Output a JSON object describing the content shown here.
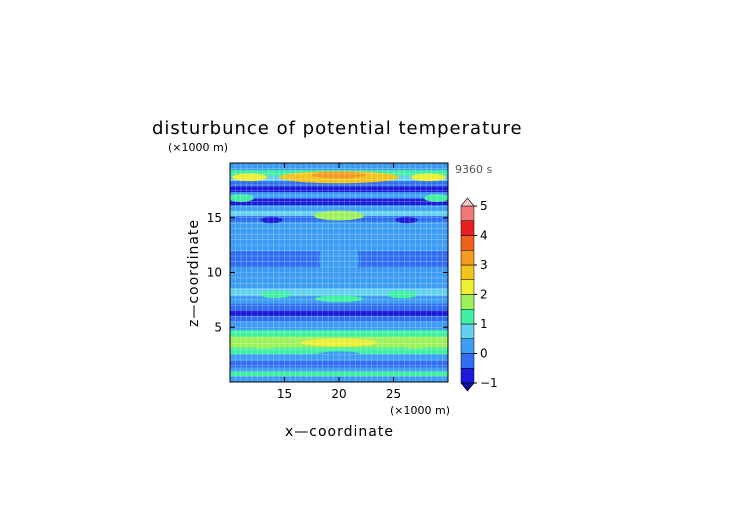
{
  "chart_data": {
    "type": "heatmap",
    "title": "disturbunce of potential temperature",
    "xlabel": "x—coordinate",
    "ylabel": "z—coordinate",
    "x_unit_label": "(×1000 m)",
    "y_unit_label": "(×1000 m)",
    "time_label": "9360 s",
    "xlim": [
      10,
      30
    ],
    "ylim": [
      0,
      20
    ],
    "x_ticks": [
      15,
      20,
      25
    ],
    "x_tick_labels": [
      "15",
      "20",
      "25"
    ],
    "y_ticks": [
      5,
      10,
      15
    ],
    "y_tick_labels": [
      "5",
      "10",
      "15"
    ],
    "grid": true,
    "colorbar": {
      "levels": [
        -1,
        -0.5,
        0,
        0.5,
        1,
        1.5,
        2,
        2.5,
        3,
        3.5,
        4,
        4.5,
        5
      ],
      "tick_values": [
        -1,
        0,
        1,
        2,
        3,
        4,
        5
      ],
      "tick_labels": [
        "−1",
        "0",
        "1",
        "2",
        "3",
        "4",
        "5"
      ],
      "colors": [
        "#1a1ad8",
        "#2f6ef0",
        "#3d9cf4",
        "#63d0f0",
        "#3ff0a0",
        "#9cf05a",
        "#ecf030",
        "#f4c41e",
        "#f49a1c",
        "#f0601c",
        "#e62020",
        "#f07878"
      ],
      "under_color": "#1010a0",
      "over_color": "#f2c8c8"
    },
    "bands": [
      {
        "z": 0.0,
        "value": 0.2
      },
      {
        "z": 0.6,
        "value": 1.0
      },
      {
        "z": 1.0,
        "value": 0.0
      },
      {
        "z": 1.4,
        "value": -0.4
      },
      {
        "z": 2.0,
        "value": 0.4
      },
      {
        "z": 2.6,
        "value": 1.0
      },
      {
        "z": 3.2,
        "value": 1.6
      },
      {
        "z": 3.6,
        "value": 1.9
      },
      {
        "z": 4.2,
        "value": 1.0
      },
      {
        "z": 4.8,
        "value": 0.3
      },
      {
        "z": 5.6,
        "value": -0.3
      },
      {
        "z": 6.1,
        "value": -0.9
      },
      {
        "z": 6.6,
        "value": -0.3
      },
      {
        "z": 7.2,
        "value": 0.4
      },
      {
        "z": 7.9,
        "value": 0.7
      },
      {
        "z": 8.6,
        "value": 0.4
      },
      {
        "z": 9.4,
        "value": 0.0
      },
      {
        "z": 10.5,
        "value": -0.1
      },
      {
        "z": 12.0,
        "value": 0.0
      },
      {
        "z": 13.0,
        "value": 0.2
      },
      {
        "z": 14.0,
        "value": 0.3
      },
      {
        "z": 14.7,
        "value": -0.2
      },
      {
        "z": 15.2,
        "value": 0.8
      },
      {
        "z": 15.7,
        "value": 0.3
      },
      {
        "z": 16.2,
        "value": -0.6
      },
      {
        "z": 16.8,
        "value": 0.4
      },
      {
        "z": 17.4,
        "value": -0.8
      },
      {
        "z": 17.9,
        "value": -0.3
      },
      {
        "z": 18.4,
        "value": 0.6
      },
      {
        "z": 18.9,
        "value": 1.2
      },
      {
        "z": 19.4,
        "value": 0.2
      },
      {
        "z": 20.0,
        "value": -0.2
      }
    ],
    "features": [
      {
        "x": 20.0,
        "z": 18.7,
        "rx": 5.5,
        "rz": 0.55,
        "value": 2.6
      },
      {
        "x": 20.0,
        "z": 18.9,
        "rx": 2.5,
        "rz": 0.3,
        "value": 3.2
      },
      {
        "x": 11.8,
        "z": 18.7,
        "rx": 1.6,
        "rz": 0.35,
        "value": 2.0
      },
      {
        "x": 28.2,
        "z": 18.7,
        "rx": 1.6,
        "rz": 0.35,
        "value": 2.0
      },
      {
        "x": 20.0,
        "z": 15.2,
        "rx": 2.3,
        "rz": 0.45,
        "value": 1.9
      },
      {
        "x": 13.8,
        "z": 14.8,
        "rx": 1.0,
        "rz": 0.3,
        "value": -0.9
      },
      {
        "x": 26.2,
        "z": 14.8,
        "rx": 1.0,
        "rz": 0.3,
        "value": -0.9
      },
      {
        "x": 11.0,
        "z": 16.8,
        "rx": 1.2,
        "rz": 0.35,
        "value": 1.3
      },
      {
        "x": 29.0,
        "z": 16.8,
        "rx": 1.2,
        "rz": 0.35,
        "value": 1.3
      },
      {
        "x": 14.2,
        "z": 8.0,
        "rx": 1.4,
        "rz": 0.35,
        "value": 1.3
      },
      {
        "x": 25.8,
        "z": 8.0,
        "rx": 1.4,
        "rz": 0.35,
        "value": 1.3
      },
      {
        "x": 20.0,
        "z": 7.6,
        "rx": 2.2,
        "rz": 0.3,
        "value": 1.1
      },
      {
        "x": 20.0,
        "z": 11.2,
        "rx": 1.8,
        "rz": 2.3,
        "value": 0.4
      },
      {
        "x": 20.0,
        "z": 3.6,
        "rx": 3.5,
        "rz": 0.35,
        "value": 2.4
      },
      {
        "x": 13.0,
        "z": 3.4,
        "rx": 1.5,
        "rz": 0.35,
        "value": 1.6
      },
      {
        "x": 27.0,
        "z": 3.4,
        "rx": 1.5,
        "rz": 0.35,
        "value": 1.6
      },
      {
        "x": 20.0,
        "z": 2.5,
        "rx": 2.0,
        "rz": 0.3,
        "value": 0.2
      }
    ]
  }
}
